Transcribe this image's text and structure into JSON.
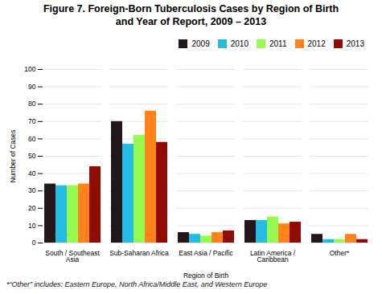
{
  "chart_data": {
    "type": "bar",
    "title": "Figure 7. Foreign-Born Tuberculosis Cases by Region of Birth\nand Year of Report, 2009 – 2013",
    "xlabel": "Region of Birth",
    "ylabel": "Number of Cases",
    "footnote": "*“Other” includes: Eastern Europe, North Africa/Middle East, and Western Europe",
    "categories": [
      "South / Southeast\nAsia",
      "Sub-Saharan Africa",
      "East Asia / Pacific",
      "Latin America /\nCaribbean",
      "Other*"
    ],
    "series": [
      {
        "name": "2009",
        "values": [
          34,
          70,
          6,
          13,
          5
        ]
      },
      {
        "name": "2010",
        "values": [
          33,
          57,
          5,
          13,
          2
        ]
      },
      {
        "name": "2011",
        "values": [
          33,
          62,
          4,
          15,
          2
        ]
      },
      {
        "name": "2012",
        "values": [
          34,
          76,
          6,
          11,
          5
        ]
      },
      {
        "name": "2013",
        "values": [
          44,
          58,
          7,
          12,
          2
        ]
      }
    ],
    "ylim": [
      0,
      100
    ],
    "yticks": [
      0,
      10,
      20,
      30,
      40,
      50,
      60,
      70,
      80,
      90,
      100
    ],
    "grid": true,
    "legend": "upper right"
  }
}
